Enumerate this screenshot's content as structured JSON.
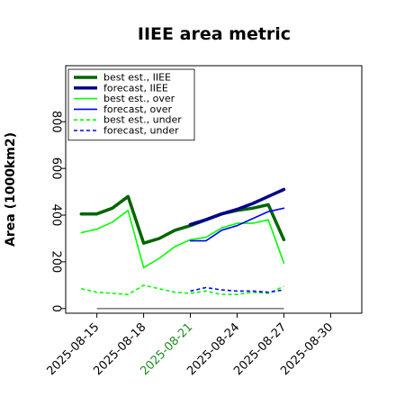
{
  "chart_data": {
    "type": "line",
    "title": "IIEE area metric",
    "xlabel": "",
    "ylabel": "Area (1000km2)",
    "ylim": [
      -20,
      1040
    ],
    "yticks": [
      0,
      200,
      400,
      600,
      800
    ],
    "xlim": [
      "2025-08-13",
      "2025-09-01"
    ],
    "xticks": [
      "2025-08-15",
      "2025-08-18",
      "2025-08-21",
      "2025-08-24",
      "2025-08-27",
      "2025-08-30"
    ],
    "highlight_tick": "2025-08-21",
    "highlight_color": "#228b22",
    "grid": false,
    "legend_position": "top-left",
    "reference_line": {
      "value": 0,
      "x_start": "2025-08-15",
      "x_end": "2025-08-27",
      "color": "#808080"
    },
    "series": [
      {
        "name": "best est., IIEE",
        "color": "#006400",
        "style": "solid",
        "width": 3.5,
        "points": [
          [
            "2025-08-14",
            405
          ],
          [
            "2025-08-15",
            405
          ],
          [
            "2025-08-16",
            430
          ],
          [
            "2025-08-17",
            480
          ],
          [
            "2025-08-18",
            280
          ],
          [
            "2025-08-19",
            300
          ],
          [
            "2025-08-20",
            335
          ],
          [
            "2025-08-21",
            355
          ],
          [
            "2025-08-22",
            380
          ],
          [
            "2025-08-23",
            405
          ],
          [
            "2025-08-24",
            420
          ],
          [
            "2025-08-25",
            430
          ],
          [
            "2025-08-26",
            445
          ],
          [
            "2025-08-27",
            295
          ]
        ]
      },
      {
        "name": "forecast, IIEE",
        "color": "#00008b",
        "style": "solid",
        "width": 3.5,
        "points": [
          [
            "2025-08-21",
            360
          ],
          [
            "2025-08-22",
            380
          ],
          [
            "2025-08-23",
            405
          ],
          [
            "2025-08-24",
            425
          ],
          [
            "2025-08-25",
            450
          ],
          [
            "2025-08-26",
            480
          ],
          [
            "2025-08-27",
            510
          ]
        ]
      },
      {
        "name": "best est., over",
        "color": "#00ff00",
        "style": "solid",
        "width": 1.6,
        "points": [
          [
            "2025-08-14",
            325
          ],
          [
            "2025-08-15",
            340
          ],
          [
            "2025-08-16",
            370
          ],
          [
            "2025-08-17",
            420
          ],
          [
            "2025-08-18",
            175
          ],
          [
            "2025-08-19",
            215
          ],
          [
            "2025-08-20",
            265
          ],
          [
            "2025-08-21",
            295
          ],
          [
            "2025-08-22",
            305
          ],
          [
            "2025-08-23",
            345
          ],
          [
            "2025-08-24",
            365
          ],
          [
            "2025-08-25",
            365
          ],
          [
            "2025-08-26",
            380
          ],
          [
            "2025-08-27",
            195
          ]
        ]
      },
      {
        "name": "forecast, over",
        "color": "#0000ff",
        "style": "solid",
        "width": 1.6,
        "points": [
          [
            "2025-08-21",
            290
          ],
          [
            "2025-08-22",
            290
          ],
          [
            "2025-08-23",
            335
          ],
          [
            "2025-08-24",
            355
          ],
          [
            "2025-08-25",
            385
          ],
          [
            "2025-08-26",
            415
          ],
          [
            "2025-08-27",
            430
          ]
        ]
      },
      {
        "name": "best est., under",
        "color": "#00ff00",
        "style": "dashed",
        "width": 1.6,
        "points": [
          [
            "2025-08-14",
            85
          ],
          [
            "2025-08-15",
            70
          ],
          [
            "2025-08-16",
            65
          ],
          [
            "2025-08-17",
            60
          ],
          [
            "2025-08-18",
            100
          ],
          [
            "2025-08-19",
            85
          ],
          [
            "2025-08-20",
            70
          ],
          [
            "2025-08-21",
            65
          ],
          [
            "2025-08-22",
            75
          ],
          [
            "2025-08-23",
            60
          ],
          [
            "2025-08-24",
            60
          ],
          [
            "2025-08-25",
            70
          ],
          [
            "2025-08-26",
            65
          ],
          [
            "2025-08-27",
            95
          ]
        ]
      },
      {
        "name": "forecast, under",
        "color": "#0000ff",
        "style": "dashed",
        "width": 1.6,
        "points": [
          [
            "2025-08-21",
            75
          ],
          [
            "2025-08-22",
            90
          ],
          [
            "2025-08-23",
            80
          ],
          [
            "2025-08-24",
            75
          ],
          [
            "2025-08-25",
            75
          ],
          [
            "2025-08-26",
            70
          ],
          [
            "2025-08-27",
            80
          ]
        ]
      }
    ]
  }
}
